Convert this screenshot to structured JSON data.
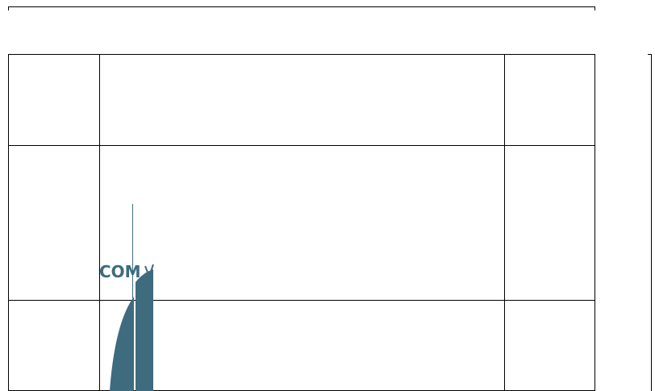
{
  "logo": {
    "text": "COM"
  }
}
